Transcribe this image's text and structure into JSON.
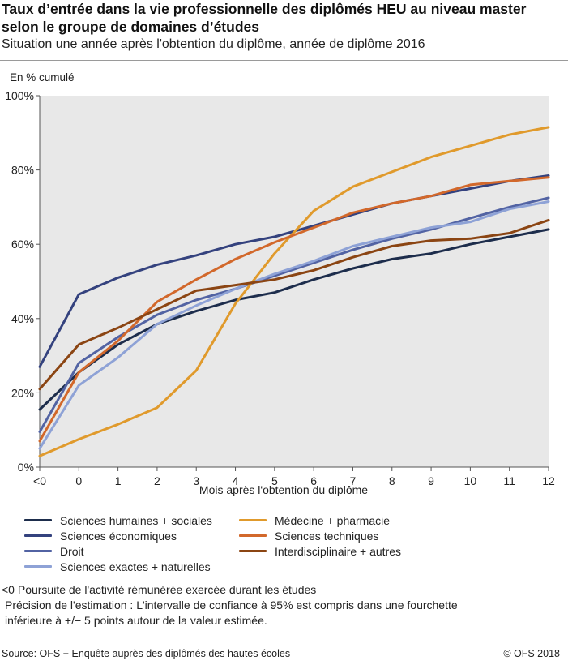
{
  "header": {
    "title": "Taux d’entrée dans la vie professionnelle des diplômés HEU au niveau master selon le groupe de domaines d’études",
    "subtitle": "Situation une année après l'obtention du diplôme, année de diplôme 2016"
  },
  "chart_data": {
    "type": "line",
    "title": "Taux d’entrée dans la vie professionnelle des diplômés HEU au niveau master selon le groupe de domaines d’études",
    "subtitle": "Situation une année après l'obtention du diplôme, année de diplôme 2016",
    "ylabel": "En % cumulé",
    "xlabel": "Mois après l'obtention du diplôme",
    "categories": [
      "<0",
      "0",
      "1",
      "2",
      "3",
      "4",
      "5",
      "6",
      "7",
      "8",
      "9",
      "10",
      "11",
      "12"
    ],
    "yticks": [
      "0%",
      "20%",
      "40%",
      "60%",
      "80%",
      "100%"
    ],
    "ylim": [
      0,
      100
    ],
    "grid": false,
    "plot_background": "#e8e8e8",
    "legend_position": "bottom",
    "series": [
      {
        "name": "Sciences humaines + sociales",
        "color": "#1d2d4c",
        "values": [
          15.5,
          25.5,
          33,
          38.5,
          42,
          45,
          47,
          50.5,
          53.5,
          56,
          57.5,
          60,
          62,
          64
        ]
      },
      {
        "name": "Sciences économiques",
        "color": "#34427e",
        "values": [
          27,
          46.5,
          51,
          54.5,
          57,
          60,
          62,
          65,
          68,
          71,
          73,
          75,
          77,
          78.5
        ]
      },
      {
        "name": "Droit",
        "color": "#5263a3",
        "values": [
          9.5,
          28,
          35,
          41,
          45,
          48,
          51.5,
          55,
          58.5,
          61.5,
          64,
          67,
          70,
          72.5
        ]
      },
      {
        "name": "Sciences exactes + naturelles",
        "color": "#8ea2d6",
        "values": [
          5,
          22,
          29.5,
          38.5,
          43.5,
          48,
          52,
          55.5,
          59.5,
          62,
          64.5,
          66,
          69.5,
          71.5
        ]
      },
      {
        "name": "Médecine + pharmacie",
        "color": "#e09a2c",
        "values": [
          3,
          7.5,
          11.5,
          16,
          26,
          44,
          57.5,
          69,
          75.5,
          79.5,
          83.5,
          86.5,
          89.5,
          91.5
        ]
      },
      {
        "name": "Sciences techniques",
        "color": "#d2682b",
        "values": [
          7,
          25.5,
          34,
          44.5,
          50.5,
          56,
          60.5,
          64.5,
          68.5,
          71,
          73,
          76,
          77,
          78
        ]
      },
      {
        "name": "Interdisciplinaire + autres",
        "color": "#8b4513",
        "values": [
          21,
          33,
          37.5,
          42.5,
          47.5,
          49,
          50.5,
          53,
          56.5,
          59.5,
          61,
          61.5,
          63,
          66.5
        ]
      }
    ]
  },
  "notes": {
    "line1": "<0 Poursuite de l'activité rémunérée exercée durant les études",
    "line2": "Précision de l'estimation : L'intervalle de confiance à 95% est compris dans une fourchette",
    "line3": "inférieure à +/− 5 points autour de la valeur estimée."
  },
  "footer": {
    "source": "Source: OFS − Enquête auprès des diplômés des hautes écoles",
    "copyright": "© OFS 2018"
  }
}
